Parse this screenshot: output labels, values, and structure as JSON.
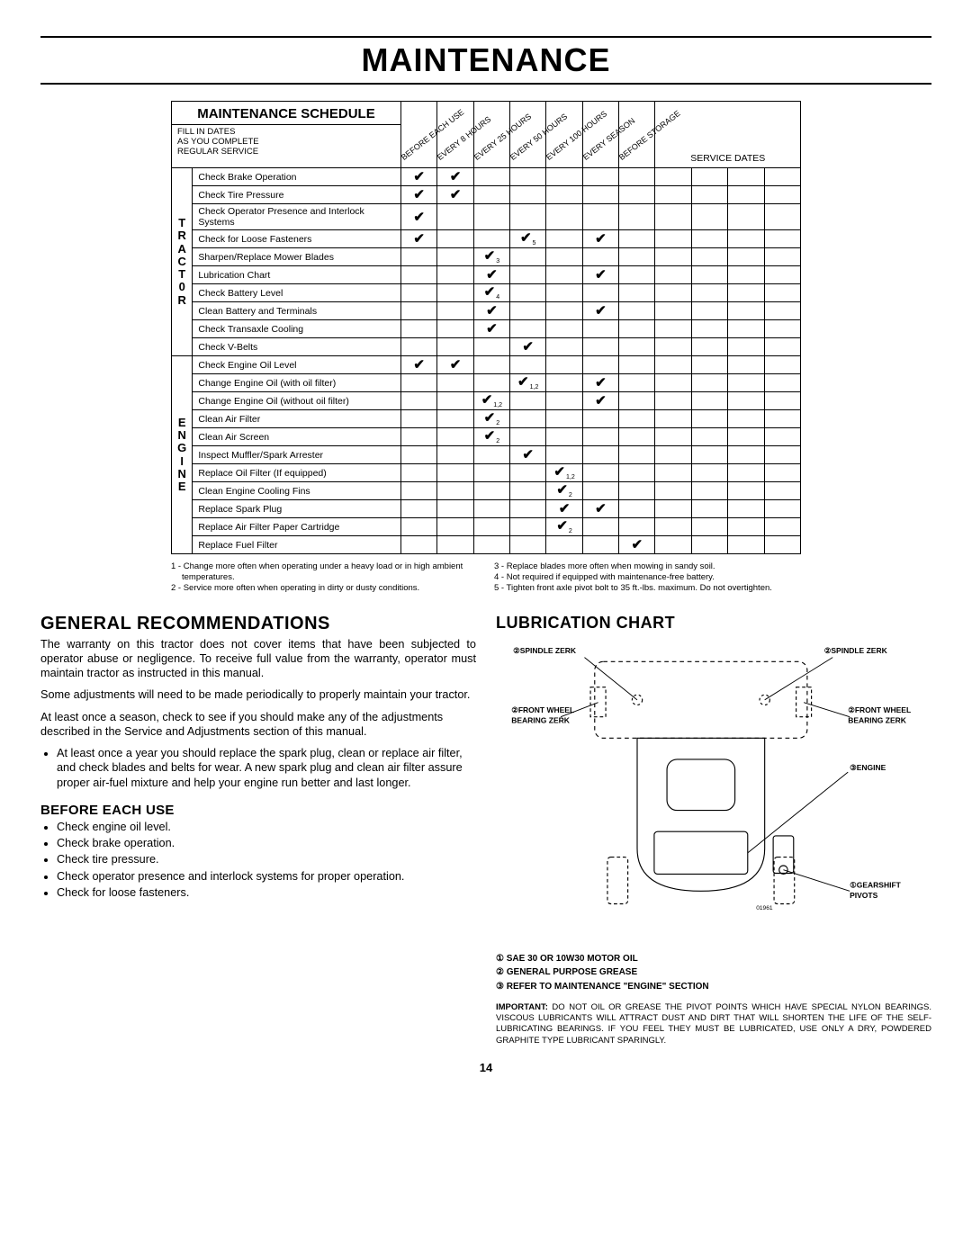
{
  "page_title": "MAINTENANCE",
  "page_number": "14",
  "schedule": {
    "title": "MAINTENANCE SCHEDULE",
    "fill_in": "FILL IN DATES\nAS YOU COMPLETE\nREGULAR SERVICE",
    "service_dates_label": "SERVICE DATES",
    "intervals": [
      "BEFORE EACH USE",
      "EVERY 8 HOURS",
      "EVERY 25 HOURS",
      "EVERY 50 HOURS",
      "EVERY 100 HOURS",
      "EVERY SEASON",
      "BEFORE STORAGE"
    ],
    "groups": [
      {
        "side": "T\nR\nA\nC\nT\n0\nR",
        "rows": [
          {
            "task": "Check Brake Operation",
            "marks": [
              "✔",
              "✔",
              "",
              "",
              "",
              "",
              ""
            ],
            "subs": [
              "",
              "",
              "",
              "",
              "",
              "",
              ""
            ]
          },
          {
            "task": "Check Tire Pressure",
            "marks": [
              "✔",
              "✔",
              "",
              "",
              "",
              "",
              ""
            ],
            "subs": [
              "",
              "",
              "",
              "",
              "",
              "",
              ""
            ]
          },
          {
            "task": "Check Operator Presence and Interlock Systems",
            "marks": [
              "✔",
              "",
              "",
              "",
              "",
              "",
              ""
            ],
            "subs": [
              "",
              "",
              "",
              "",
              "",
              "",
              ""
            ]
          },
          {
            "task": "Check for Loose Fasteners",
            "marks": [
              "✔",
              "",
              "",
              "✔",
              "",
              "✔",
              ""
            ],
            "subs": [
              "",
              "",
              "",
              "5",
              "",
              "",
              ""
            ]
          },
          {
            "task": "Sharpen/Replace Mower Blades",
            "marks": [
              "",
              "",
              "✔",
              "",
              "",
              "",
              ""
            ],
            "subs": [
              "",
              "",
              "3",
              "",
              "",
              "",
              ""
            ]
          },
          {
            "task": "Lubrication Chart",
            "marks": [
              "",
              "",
              "✔",
              "",
              "",
              "✔",
              ""
            ],
            "subs": [
              "",
              "",
              "",
              "",
              "",
              "",
              ""
            ]
          },
          {
            "task": "Check Battery Level",
            "marks": [
              "",
              "",
              "✔",
              "",
              "",
              "",
              ""
            ],
            "subs": [
              "",
              "",
              "4",
              "",
              "",
              "",
              ""
            ]
          },
          {
            "task": "Clean Battery and Terminals",
            "marks": [
              "",
              "",
              "✔",
              "",
              "",
              "✔",
              ""
            ],
            "subs": [
              "",
              "",
              "",
              "",
              "",
              "",
              ""
            ]
          },
          {
            "task": "Check Transaxle Cooling",
            "marks": [
              "",
              "",
              "✔",
              "",
              "",
              "",
              ""
            ],
            "subs": [
              "",
              "",
              "",
              "",
              "",
              "",
              ""
            ]
          },
          {
            "task": "Check V-Belts",
            "marks": [
              "",
              "",
              "",
              "✔",
              "",
              "",
              ""
            ],
            "subs": [
              "",
              "",
              "",
              "",
              "",
              "",
              ""
            ]
          }
        ]
      },
      {
        "side": "E\nN\nG\nI\nN\nE",
        "rows": [
          {
            "task": "Check Engine Oil Level",
            "marks": [
              "✔",
              "✔",
              "",
              "",
              "",
              "",
              ""
            ],
            "subs": [
              "",
              "",
              "",
              "",
              "",
              "",
              ""
            ]
          },
          {
            "task": "Change Engine Oil (with oil filter)",
            "marks": [
              "",
              "",
              "",
              "✔",
              "",
              "✔",
              ""
            ],
            "subs": [
              "",
              "",
              "",
              "1,2",
              "",
              "",
              ""
            ]
          },
          {
            "task": "Change Engine Oil (without oil filter)",
            "marks": [
              "",
              "",
              "✔",
              "",
              "",
              "✔",
              ""
            ],
            "subs": [
              "",
              "",
              "1,2",
              "",
              "",
              "",
              ""
            ]
          },
          {
            "task": "Clean Air Filter",
            "marks": [
              "",
              "",
              "✔",
              "",
              "",
              "",
              ""
            ],
            "subs": [
              "",
              "",
              "2",
              "",
              "",
              "",
              ""
            ]
          },
          {
            "task": "Clean Air Screen",
            "marks": [
              "",
              "",
              "✔",
              "",
              "",
              "",
              ""
            ],
            "subs": [
              "",
              "",
              "2",
              "",
              "",
              "",
              ""
            ]
          },
          {
            "task": "Inspect Muffler/Spark Arrester",
            "marks": [
              "",
              "",
              "",
              "✔",
              "",
              "",
              ""
            ],
            "subs": [
              "",
              "",
              "",
              "",
              "",
              "",
              ""
            ]
          },
          {
            "task": "Replace Oil Filter (If equipped)",
            "marks": [
              "",
              "",
              "",
              "",
              "✔",
              "",
              ""
            ],
            "subs": [
              "",
              "",
              "",
              "",
              "1,2",
              "",
              ""
            ]
          },
          {
            "task": "Clean Engine Cooling Fins",
            "marks": [
              "",
              "",
              "",
              "",
              "✔",
              "",
              ""
            ],
            "subs": [
              "",
              "",
              "",
              "",
              "2",
              "",
              ""
            ]
          },
          {
            "task": "Replace Spark Plug",
            "marks": [
              "",
              "",
              "",
              "",
              "✔",
              "✔",
              ""
            ],
            "subs": [
              "",
              "",
              "",
              "",
              "",
              "",
              ""
            ]
          },
          {
            "task": "Replace Air Filter Paper Cartridge",
            "marks": [
              "",
              "",
              "",
              "",
              "✔",
              "",
              ""
            ],
            "subs": [
              "",
              "",
              "",
              "",
              "2",
              "",
              ""
            ]
          },
          {
            "task": "Replace Fuel Filter",
            "marks": [
              "",
              "",
              "",
              "",
              "",
              "",
              "✔"
            ],
            "subs": [
              "",
              "",
              "",
              "",
              "",
              "",
              ""
            ]
          }
        ]
      }
    ],
    "footnotes_left": [
      "1 - Change more often when operating under a heavy load or in high ambient temperatures.",
      "2 - Service more often when operating in dirty or dusty conditions."
    ],
    "footnotes_right": [
      "3 - Replace blades more often when mowing in sandy soil.",
      "4 - Not required if equipped with maintenance-free battery.",
      "5 - Tighten front axle pivot bolt to 35 ft.-lbs. maximum. Do not overtighten."
    ]
  },
  "general": {
    "heading": "GENERAL RECOMMENDATIONS",
    "p1": "The warranty on this tractor does not cover items that have been subjected to operator abuse or negligence. To receive full value from the warranty, operator must maintain tractor as instructed in this manual.",
    "p2": "Some adjustments will need to be made periodically to properly maintain your tractor.",
    "p3": "At least once a season, check to see if you should make any of the adjustments described in the Service and Adjustments section of this manual.",
    "bullet1": "At least once a year you should replace the spark plug, clean or replace air filter, and check blades and belts for wear.  A new spark plug and clean air filter assure proper air-fuel mixture and help your engine run better and last longer."
  },
  "before": {
    "heading": "BEFORE EACH USE",
    "items": [
      "Check engine oil level.",
      "Check brake operation.",
      "Check tire pressure.",
      "Check operator presence and interlock systems for proper operation.",
      "Check for loose fasteners."
    ]
  },
  "lubrication": {
    "heading": "LUBRICATION CHART",
    "labels": {
      "spindle_l": "②SPINDLE ZERK",
      "spindle_r": "②SPINDLE ZERK",
      "frontwheel_l": "②FRONT WHEEL BEARING  ZERK",
      "frontwheel_r": "②FRONT WHEEL BEARING  ZERK",
      "engine": "③ENGINE",
      "gearshift": "①GEARSHIFT PIVOTS",
      "diag_id": "01961"
    },
    "legend": {
      "l1": "① SAE 30 OR 10W30 MOTOR OIL",
      "l2": "② GENERAL PURPOSE GREASE",
      "l3": "③ REFER TO MAINTENANCE \"ENGINE\"  SECTION"
    },
    "important": "IMPORTANT:  DO NOT OIL OR GREASE THE PIVOT POINTS WHICH HAVE SPECIAL NYLON BEARINGS.  VISCOUS LUBRICANTS WILL ATTRACT DUST AND DIRT THAT WILL SHORTEN THE LIFE OF THE SELF-LUBRICATING BEARINGS.  IF YOU FEEL THEY MUST BE LUBRICATED, USE ONLY A DRY, POWDERED GRAPHITE TYPE LUBRICANT SPARINGLY."
  }
}
